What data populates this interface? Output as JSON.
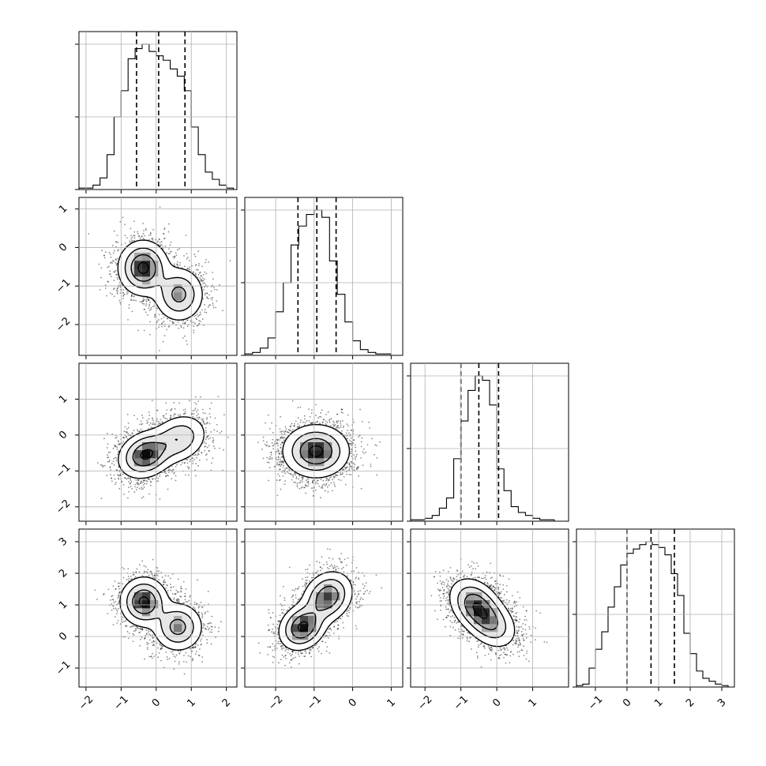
{
  "chart_data": {
    "type": "corner",
    "n_params": 4,
    "parameters": [
      {
        "id": "p0",
        "range": [
          -2.2,
          2.3
        ],
        "ticks": [
          -2,
          -1,
          0,
          1,
          2
        ],
        "quantiles": [
          -0.56,
          0.07,
          0.82
        ]
      },
      {
        "id": "p1",
        "range": [
          -2.8,
          1.3
        ],
        "ticks": [
          -2,
          -1,
          0,
          1
        ],
        "quantiles": [
          -1.42,
          -0.93,
          -0.43
        ]
      },
      {
        "id": "p2",
        "range": [
          -2.4,
          2.0
        ],
        "ticks": [
          -2,
          -1,
          0,
          1
        ],
        "quantiles": [
          -1.0,
          -0.5,
          0.05
        ]
      },
      {
        "id": "p3",
        "range": [
          -1.6,
          3.4
        ],
        "ticks": [
          -1,
          0,
          1,
          2,
          3
        ],
        "quantiles": [
          0.0,
          0.76,
          1.5
        ]
      }
    ],
    "marginals": [
      {
        "param": "p0",
        "bins": [
          -2.1,
          -1.9,
          -1.7,
          -1.5,
          -1.3,
          -1.1,
          -0.9,
          -0.7,
          -0.5,
          -0.3,
          -0.1,
          0.1,
          0.3,
          0.5,
          0.7,
          0.9,
          1.1,
          1.3,
          1.5,
          1.7,
          1.9,
          2.1
        ],
        "counts": [
          0.01,
          0.01,
          0.03,
          0.08,
          0.24,
          0.5,
          0.68,
          0.9,
          0.97,
          1.0,
          0.95,
          0.92,
          0.89,
          0.83,
          0.78,
          0.68,
          0.43,
          0.24,
          0.12,
          0.07,
          0.03,
          0.01
        ]
      },
      {
        "param": "p1",
        "bins": [
          -2.7,
          -2.5,
          -2.3,
          -2.1,
          -1.9,
          -1.7,
          -1.5,
          -1.3,
          -1.1,
          -0.9,
          -0.7,
          -0.5,
          -0.3,
          -0.1,
          0.1,
          0.3,
          0.5,
          0.7,
          0.9
        ],
        "counts": [
          0.01,
          0.02,
          0.05,
          0.12,
          0.3,
          0.5,
          0.76,
          0.89,
          0.97,
          1.0,
          0.95,
          0.65,
          0.42,
          0.23,
          0.1,
          0.04,
          0.02,
          0.01,
          0.01
        ]
      },
      {
        "param": "p2",
        "bins": [
          -2.3,
          -2.1,
          -1.9,
          -1.7,
          -1.5,
          -1.3,
          -1.1,
          -0.9,
          -0.7,
          -0.5,
          -0.3,
          -0.1,
          0.1,
          0.3,
          0.5,
          0.7,
          0.9,
          1.1,
          1.3,
          1.5
        ],
        "counts": [
          0.01,
          0.01,
          0.02,
          0.04,
          0.09,
          0.16,
          0.43,
          0.69,
          0.9,
          1.0,
          0.97,
          0.8,
          0.36,
          0.21,
          0.1,
          0.06,
          0.04,
          0.02,
          0.01,
          0.01
        ]
      },
      {
        "param": "p3",
        "bins": [
          -1.5,
          -1.3,
          -1.1,
          -0.9,
          -0.7,
          -0.5,
          -0.3,
          -0.1,
          0.1,
          0.3,
          0.5,
          0.7,
          0.9,
          1.1,
          1.3,
          1.5,
          1.7,
          1.9,
          2.1,
          2.3,
          2.5,
          2.7,
          2.9,
          3.1
        ],
        "counts": [
          0.01,
          0.02,
          0.13,
          0.26,
          0.38,
          0.55,
          0.69,
          0.84,
          0.92,
          0.95,
          0.98,
          1.0,
          0.98,
          0.96,
          0.91,
          0.78,
          0.63,
          0.37,
          0.23,
          0.11,
          0.06,
          0.04,
          0.02,
          0.01
        ]
      }
    ],
    "joints": [
      {
        "x": "p0",
        "y": "p1",
        "modes": [
          {
            "mx": -0.37,
            "my": -0.53,
            "sx": 0.35,
            "sy": 0.35,
            "rho": 0.0,
            "w": 1.0
          },
          {
            "mx": 0.65,
            "my": -1.22,
            "sx": 0.35,
            "sy": 0.35,
            "rho": 0.0,
            "w": 0.72
          }
        ]
      },
      {
        "x": "p0",
        "y": "p2",
        "modes": [
          {
            "mx": -0.3,
            "my": -0.55,
            "sx": 0.38,
            "sy": 0.32,
            "rho": 0.2,
            "w": 1.0
          },
          {
            "mx": 0.65,
            "my": -0.1,
            "sx": 0.4,
            "sy": 0.34,
            "rho": 0.2,
            "w": 0.6
          }
        ]
      },
      {
        "x": "p1",
        "y": "p2",
        "modes": [
          {
            "mx": -0.95,
            "my": -0.45,
            "sx": 0.42,
            "sy": 0.36,
            "rho": 0.0,
            "w": 1.0
          }
        ]
      },
      {
        "x": "p0",
        "y": "p3",
        "modes": [
          {
            "mx": -0.35,
            "my": 1.1,
            "sx": 0.33,
            "sy": 0.38,
            "rho": 0.0,
            "w": 1.0
          },
          {
            "mx": 0.62,
            "my": 0.3,
            "sx": 0.35,
            "sy": 0.38,
            "rho": 0.0,
            "w": 0.75
          }
        ]
      },
      {
        "x": "p1",
        "y": "p3",
        "modes": [
          {
            "mx": -1.3,
            "my": 0.3,
            "sx": 0.3,
            "sy": 0.36,
            "rho": 0.2,
            "w": 1.0
          },
          {
            "mx": -0.65,
            "my": 1.25,
            "sx": 0.32,
            "sy": 0.4,
            "rho": 0.2,
            "w": 0.9
          }
        ]
      },
      {
        "x": "p2",
        "y": "p3",
        "modes": [
          {
            "mx": -0.6,
            "my": 1.0,
            "sx": 0.36,
            "sy": 0.42,
            "rho": -0.3,
            "w": 1.0
          },
          {
            "mx": -0.15,
            "my": 0.4,
            "sx": 0.36,
            "sy": 0.4,
            "rho": -0.3,
            "w": 0.7
          }
        ]
      }
    ],
    "contour_levels": [
      0.92,
      0.62,
      0.34,
      0.12
    ],
    "contour_fill_colors": [
      "#ffffff",
      "#e6e6e6",
      "#c3c3c3",
      "#9a9a9a"
    ],
    "scatter_color": "#8c8c8c",
    "line_color": "#000000",
    "grid": true,
    "xlabels": [],
    "ylabels": []
  }
}
